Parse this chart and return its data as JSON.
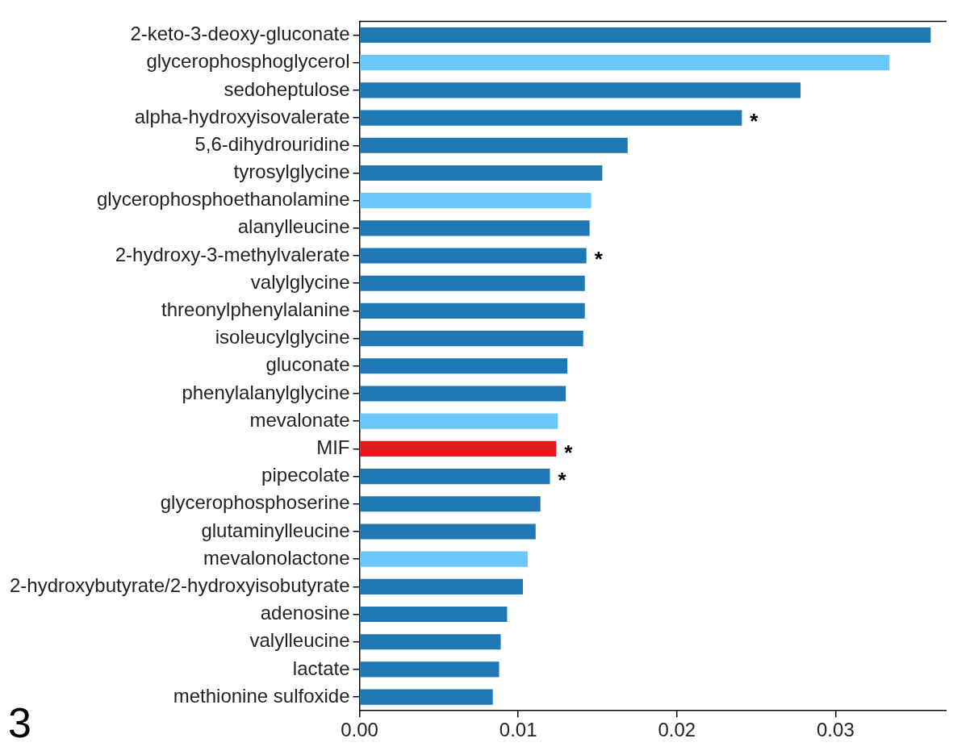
{
  "chart_data": {
    "type": "bar",
    "orientation": "horizontal",
    "categories": [
      "2-keto-3-deoxy-gluconate",
      "glycerophosphoglycerol",
      "sedoheptulose",
      "alpha-hydroxyisovalerate",
      "5,6-dihydrouridine",
      "tyrosylglycine",
      "glycerophosphoethanolamine",
      "alanylleucine",
      "2-hydroxy-3-methylvalerate",
      "valylglycine",
      "threonylphenylalanine",
      "isoleucylglycine",
      "gluconate",
      "phenylalanylglycine",
      "mevalonate",
      "MIF",
      "pipecolate",
      "glycerophosphoserine",
      "glutaminylleucine",
      "mevalonolactone",
      "2-hydroxybutyrate/2-hydroxyisobutyrate",
      "adenosine",
      "valylleucine",
      "lactate",
      "methionine sulfoxide"
    ],
    "values": [
      0.036,
      0.0334,
      0.0278,
      0.0241,
      0.0169,
      0.0153,
      0.0146,
      0.0145,
      0.0143,
      0.0142,
      0.0142,
      0.0141,
      0.0131,
      0.013,
      0.0125,
      0.0124,
      0.012,
      0.0114,
      0.0111,
      0.0106,
      0.0103,
      0.0093,
      0.0089,
      0.0088,
      0.0084
    ],
    "colors": [
      "#1f77b4",
      "#6ac8fa",
      "#1f77b4",
      "#1f77b4",
      "#1f77b4",
      "#1f77b4",
      "#6ac8fa",
      "#1f77b4",
      "#1f77b4",
      "#1f77b4",
      "#1f77b4",
      "#1f77b4",
      "#1f77b4",
      "#1f77b4",
      "#6ac8fa",
      "#e31a1c",
      "#1f77b4",
      "#1f77b4",
      "#1f77b4",
      "#6ac8fa",
      "#1f77b4",
      "#1f77b4",
      "#1f77b4",
      "#1f77b4",
      "#1f77b4"
    ],
    "xlim": [
      0,
      0.037
    ],
    "xticks": [
      {
        "value": 0,
        "label": "0.00"
      },
      {
        "value": 0.01,
        "label": "0.01"
      },
      {
        "value": 0.02,
        "label": "0.02"
      },
      {
        "value": 0.03,
        "label": "0.03"
      }
    ],
    "grid": false,
    "legend": false,
    "annotations": [
      {
        "text": "*",
        "x": 0.0241,
        "y": "alpha-hydroxyisovalerate"
      },
      {
        "text": "*",
        "x": 0.0143,
        "y": "2-hydroxy-3-methylvalerate"
      },
      {
        "text": "*",
        "x": 0.0124,
        "y": "MIF"
      },
      {
        "text": "*",
        "x": 0.012,
        "y": "pipecolate"
      },
      "3"
    ]
  }
}
